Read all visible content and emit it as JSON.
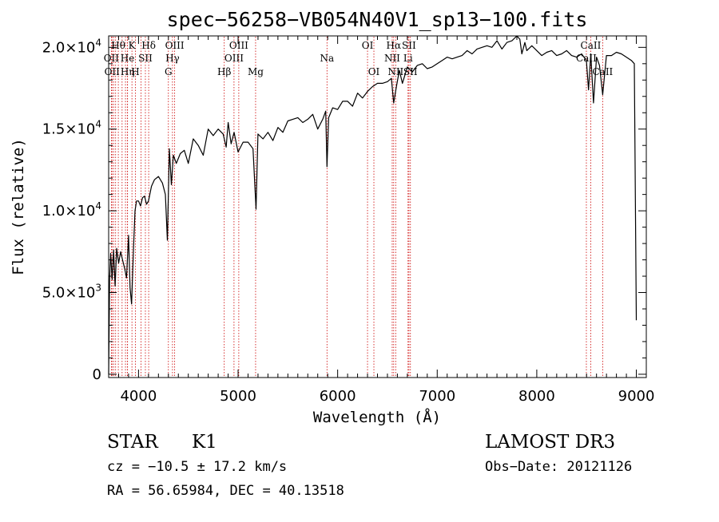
{
  "chart_data": {
    "type": "line",
    "title": "spec−56258−VB054N40V1_sp13−100.fits",
    "xlabel": "Wavelength (Å)",
    "ylabel": "Flux (relative)",
    "xlim": [
      3700,
      9100
    ],
    "ylim": [
      -200,
      20700
    ],
    "x_ticks": [
      {
        "value": 4000,
        "label": "4000"
      },
      {
        "value": 5000,
        "label": "5000"
      },
      {
        "value": 6000,
        "label": "6000"
      },
      {
        "value": 7000,
        "label": "7000"
      },
      {
        "value": 8000,
        "label": "8000"
      },
      {
        "value": 9000,
        "label": "9000"
      }
    ],
    "y_ticks": [
      {
        "value": 0,
        "mant": "0",
        "exp": ""
      },
      {
        "value": 5000,
        "mant": "5.0×10",
        "exp": "3"
      },
      {
        "value": 10000,
        "mant": "1.0×10",
        "exp": "4"
      },
      {
        "value": 15000,
        "mant": "1.5×10",
        "exp": "4"
      },
      {
        "value": 20000,
        "mant": "2.0×10",
        "exp": "4"
      }
    ],
    "grid": false,
    "series": [
      {
        "color": "#000000",
        "x": [
          3700,
          3710,
          3720,
          3735,
          3750,
          3765,
          3780,
          3800,
          3820,
          3840,
          3860,
          3880,
          3900,
          3915,
          3930,
          3950,
          3965,
          3980,
          4000,
          4020,
          4040,
          4060,
          4080,
          4100,
          4130,
          4160,
          4200,
          4240,
          4270,
          4290,
          4310,
          4330,
          4350,
          4380,
          4420,
          4460,
          4500,
          4550,
          4600,
          4650,
          4700,
          4750,
          4800,
          4850,
          4880,
          4900,
          4930,
          4960,
          5000,
          5050,
          5100,
          5150,
          5180,
          5200,
          5250,
          5300,
          5350,
          5400,
          5450,
          5500,
          5550,
          5600,
          5650,
          5700,
          5750,
          5800,
          5850,
          5880,
          5893,
          5910,
          5950,
          6000,
          6050,
          6100,
          6150,
          6200,
          6250,
          6300,
          6350,
          6400,
          6450,
          6500,
          6540,
          6563,
          6590,
          6620,
          6650,
          6700,
          6750,
          6800,
          6850,
          6900,
          6950,
          7000,
          7050,
          7100,
          7150,
          7200,
          7250,
          7300,
          7350,
          7400,
          7450,
          7500,
          7550,
          7600,
          7650,
          7700,
          7750,
          7800,
          7830,
          7850,
          7880,
          7900,
          7950,
          8000,
          8050,
          8100,
          8150,
          8200,
          8250,
          8300,
          8350,
          8400,
          8450,
          8498,
          8520,
          8542,
          8570,
          8600,
          8630,
          8662,
          8700,
          8750,
          8800,
          8850,
          8900,
          8950,
          8980,
          9000
        ],
        "y": [
          0,
          5800,
          7400,
          5800,
          7600,
          5400,
          7700,
          6800,
          7500,
          7000,
          6500,
          5900,
          8500,
          5300,
          4300,
          7800,
          10000,
          10600,
          10600,
          10300,
          10800,
          10900,
          10400,
          10600,
          11500,
          11900,
          12100,
          11700,
          11000,
          8200,
          13800,
          11600,
          13400,
          12900,
          13500,
          13700,
          12900,
          14400,
          14000,
          13400,
          15000,
          14600,
          15000,
          14700,
          13900,
          15400,
          14100,
          14800,
          13600,
          14200,
          14200,
          13800,
          10100,
          14700,
          14400,
          14800,
          14300,
          15100,
          14800,
          15500,
          15600,
          15700,
          15400,
          15600,
          15900,
          15000,
          15600,
          16100,
          12700,
          15700,
          16300,
          16200,
          16700,
          16700,
          16400,
          17200,
          16900,
          17300,
          17600,
          17800,
          17800,
          17900,
          18100,
          16600,
          17600,
          18600,
          17800,
          18800,
          18500,
          18900,
          19000,
          18700,
          18800,
          19000,
          19200,
          19400,
          19300,
          19400,
          19500,
          19800,
          19600,
          19900,
          20000,
          20100,
          20000,
          20400,
          19900,
          20300,
          20400,
          20700,
          20500,
          19600,
          20300,
          19800,
          20100,
          19800,
          19500,
          19700,
          19800,
          19500,
          19600,
          19800,
          19500,
          19400,
          19600,
          19200,
          17400,
          19600,
          16600,
          19400,
          18900,
          17100,
          19500,
          19500,
          19700,
          19600,
          19400,
          19200,
          19000,
          3300
        ]
      }
    ],
    "lines": [
      {
        "x": 3727,
        "label": "OII",
        "row": 1
      },
      {
        "x": 3734,
        "label": "OII",
        "row": 2
      },
      {
        "x": 3750,
        "label": "",
        "row": 0
      },
      {
        "x": 3770,
        "label": "",
        "row": 0
      },
      {
        "x": 3797,
        "label": "Hθ",
        "row": 0
      },
      {
        "x": 3835,
        "label": "",
        "row": 0
      },
      {
        "x": 3869,
        "label": "",
        "row": 0
      },
      {
        "x": 3889,
        "label": "He",
        "row": 1
      },
      {
        "x": 3890,
        "label": "Hη",
        "row": 2
      },
      {
        "x": 3934,
        "label": "K",
        "row": 0
      },
      {
        "x": 3969,
        "label": "H",
        "row": 2
      },
      {
        "x": 4026,
        "label": "",
        "row": 0
      },
      {
        "x": 4069,
        "label": "SII",
        "row": 1
      },
      {
        "x": 4102,
        "label": "Hδ",
        "row": 0
      },
      {
        "x": 4300,
        "label": "G",
        "row": 2
      },
      {
        "x": 4341,
        "label": "Hγ",
        "row": 1
      },
      {
        "x": 4363,
        "label": "OIII",
        "row": 0
      },
      {
        "x": 4861,
        "label": "Hβ",
        "row": 2
      },
      {
        "x": 4959,
        "label": "OIII",
        "row": 1
      },
      {
        "x": 5007,
        "label": "OIII",
        "row": 0
      },
      {
        "x": 5176,
        "label": "Mg",
        "row": 2
      },
      {
        "x": 5893,
        "label": "Na",
        "row": 1
      },
      {
        "x": 6300,
        "label": "OI",
        "row": 0
      },
      {
        "x": 6364,
        "label": "OI",
        "row": 2
      },
      {
        "x": 6548,
        "label": "NII",
        "row": 1
      },
      {
        "x": 6563,
        "label": "Hα",
        "row": 0
      },
      {
        "x": 6583,
        "label": "NII",
        "row": 2
      },
      {
        "x": 6707,
        "label": "Li",
        "row": 1
      },
      {
        "x": 6716,
        "label": "SII",
        "row": 0
      },
      {
        "x": 6731,
        "label": "SII",
        "row": 2
      },
      {
        "x": 8498,
        "label": "CaII",
        "row": 1
      },
      {
        "x": 8542,
        "label": "CaII",
        "row": 0
      },
      {
        "x": 8662,
        "label": "CaII",
        "row": 2
      }
    ]
  },
  "info": {
    "class": "STAR",
    "subclass": "K1",
    "redshift": "cz = −10.5 ± 17.2 km/s",
    "coords": "RA =  56.65984, DEC =  40.13518",
    "survey": "LAMOST DR3",
    "obs_date": "Obs−Date: 20121126"
  },
  "colors": {
    "spectrum": "#000000",
    "line_markers": "#cc0000",
    "axes": "#000000"
  }
}
